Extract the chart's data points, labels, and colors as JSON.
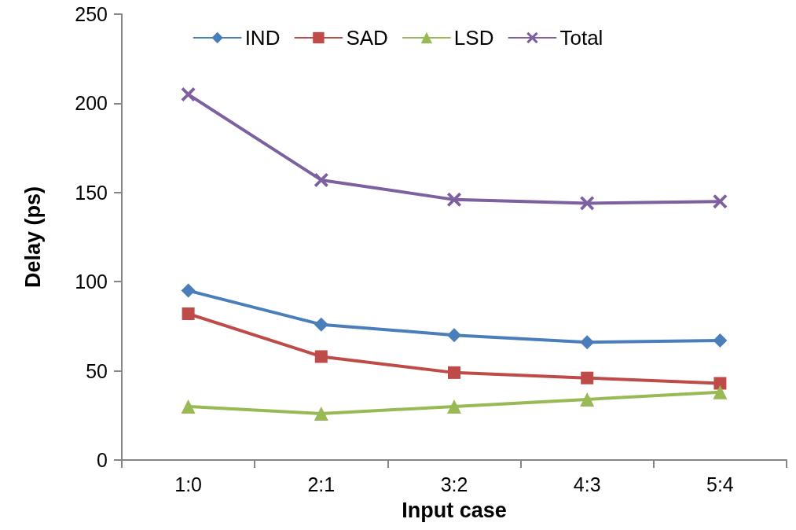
{
  "chart_data": {
    "type": "line",
    "xlabel": "Input case",
    "ylabel": "Delay (ps)",
    "categories": [
      "1:0",
      "2:1",
      "3:2",
      "4:3",
      "5:4"
    ],
    "series": [
      {
        "name": "IND",
        "color": "#4a7ebb",
        "marker": "diamond",
        "values": [
          95,
          76,
          70,
          66,
          67
        ]
      },
      {
        "name": "SAD",
        "color": "#be4b48",
        "marker": "square",
        "values": [
          82,
          58,
          49,
          46,
          43
        ]
      },
      {
        "name": "LSD",
        "color": "#98b954",
        "marker": "triangle",
        "values": [
          30,
          26,
          30,
          34,
          38
        ]
      },
      {
        "name": "Total",
        "color": "#7d60a0",
        "marker": "cross",
        "values": [
          205,
          157,
          146,
          144,
          145
        ]
      }
    ],
    "ylim": [
      0,
      250
    ],
    "yticks": [
      0,
      50,
      100,
      150,
      200,
      250
    ],
    "grid": false,
    "legend": "top",
    "line_style": "solid"
  }
}
